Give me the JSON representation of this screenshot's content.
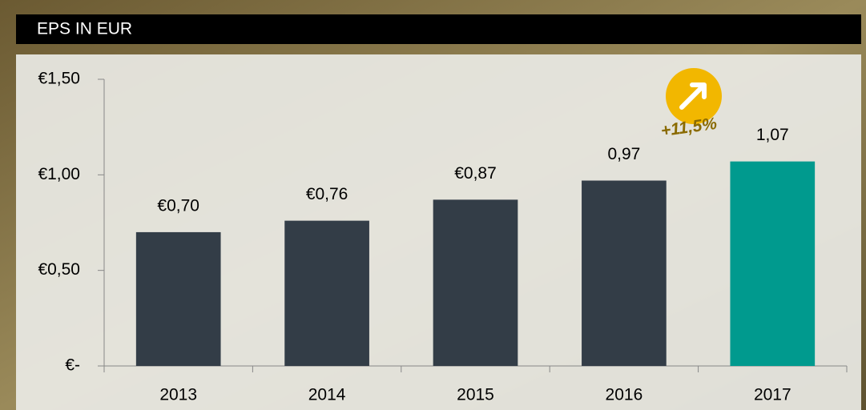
{
  "chart_data": {
    "type": "bar",
    "title": "EPS IN EUR",
    "categories": [
      "2013",
      "2014",
      "2015",
      "2016",
      "2017"
    ],
    "values": [
      0.7,
      0.76,
      0.87,
      0.97,
      1.07
    ],
    "value_labels": [
      "€0,70",
      "€0,76",
      "€0,87",
      "0,97",
      "1,07"
    ],
    "colors": [
      "#333d47",
      "#333d47",
      "#333d47",
      "#333d47",
      "#009a8e"
    ],
    "ylim": [
      0,
      1.5
    ],
    "yticks": [
      {
        "value": 0,
        "label": "€-"
      },
      {
        "value": 0.5,
        "label": "€0,50"
      },
      {
        "value": 1,
        "label": "€1,00"
      },
      {
        "value": 1.5,
        "label": "€1,50"
      }
    ],
    "annotation": "+11,5%"
  }
}
